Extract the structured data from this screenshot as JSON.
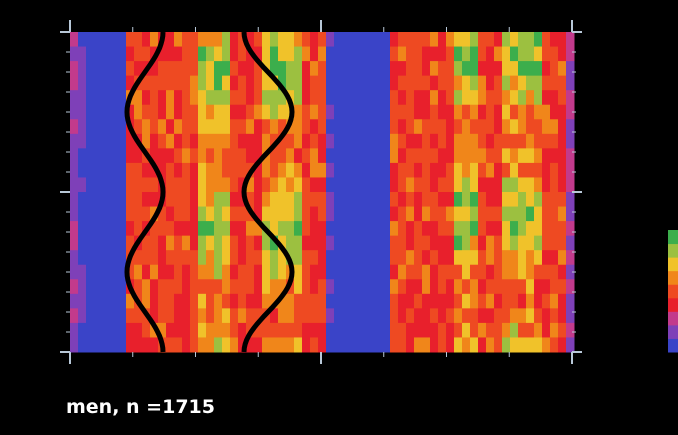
{
  "caption": "men, n =1715",
  "chart_data": {
    "type": "heatmap",
    "title": "",
    "xlabel": "",
    "ylabel": "",
    "grid": false,
    "legend": "colorbar-right",
    "colorscale": [
      "#3a44c8",
      "#7e40b8",
      "#c23a8c",
      "#e8202c",
      "#ee4a22",
      "#f0861a",
      "#f0c22a",
      "#9cc040",
      "#3cae4c"
    ],
    "rows": 22,
    "bands": [
      {
        "name": "",
        "value": 0.05
      },
      {
        "name": "",
        "value": 0.55
      },
      {
        "name": "",
        "value": 0.55
      },
      {
        "name": "",
        "value": 0.05
      },
      {
        "name": "",
        "value": 0.55
      },
      {
        "name": "",
        "value": 0.55
      }
    ],
    "contour_color": "#000000"
  }
}
